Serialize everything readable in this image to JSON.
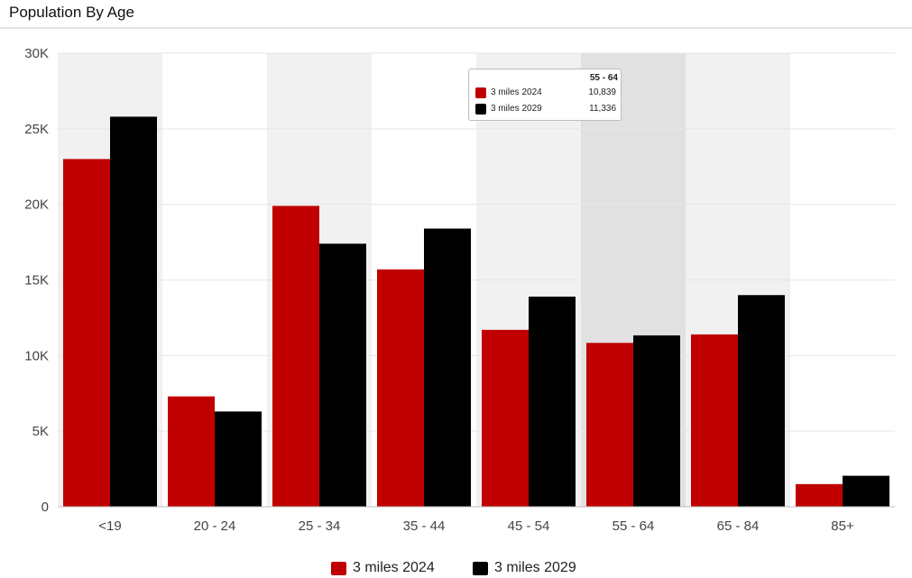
{
  "header": {
    "title": "Population By Age"
  },
  "chart_data": {
    "type": "bar",
    "title": "Population By Age",
    "categories": [
      "<19",
      "20 - 24",
      "25 - 34",
      "35 - 44",
      "45 - 54",
      "55 - 64",
      "65 - 84",
      "85+"
    ],
    "series": [
      {
        "name": "3 miles 2024",
        "color": "#c00000",
        "values": [
          23000,
          7300,
          19900,
          15700,
          11700,
          10839,
          11400,
          1500
        ]
      },
      {
        "name": "3 miles 2029",
        "color": "#000000",
        "values": [
          25800,
          6300,
          17400,
          18400,
          13900,
          11336,
          14000,
          2050
        ]
      }
    ],
    "ylim": [
      0,
      30000
    ],
    "yticks": [
      0,
      5000,
      10000,
      15000,
      20000,
      25000,
      30000
    ],
    "ytick_labels": [
      "0",
      "5K",
      "10K",
      "15K",
      "20K",
      "25K",
      "30K"
    ],
    "grid": true,
    "legend_position": "bottom-center",
    "highlighted_category": "55 - 64",
    "band_colors": {
      "shade": "#f1f1f1",
      "highlight": "#e1e1e1"
    }
  },
  "tooltip": {
    "title": "55 - 64",
    "rows": [
      {
        "name": "3 miles 2024",
        "value": "10,839",
        "color": "#c00000"
      },
      {
        "name": "3 miles 2029",
        "value": "11,336",
        "color": "#000000"
      }
    ]
  },
  "legend": {
    "items": [
      {
        "label": "3 miles 2024",
        "color": "#c00000"
      },
      {
        "label": "3 miles 2029",
        "color": "#000000"
      }
    ]
  }
}
